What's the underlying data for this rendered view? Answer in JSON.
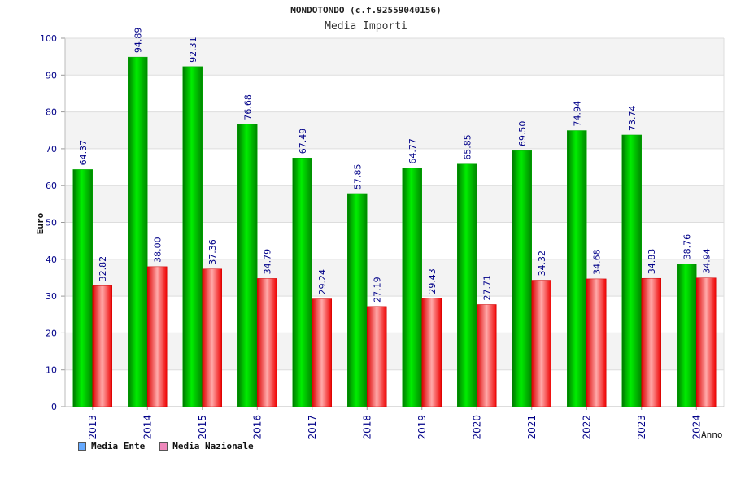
{
  "chart_data": {
    "type": "bar",
    "title": "MONDOTONDO (c.f.92559040156)",
    "subtitle": "Media Importi",
    "xlabel": "Anno",
    "ylabel": "Euro",
    "ylim": [
      0,
      100
    ],
    "yticks": [
      "0",
      "10",
      "20",
      "30",
      "40",
      "50",
      "60",
      "70",
      "80",
      "90",
      "100"
    ],
    "categories": [
      "2013",
      "2014",
      "2015",
      "2016",
      "2017",
      "2018",
      "2019",
      "2020",
      "2021",
      "2022",
      "2023",
      "2024"
    ],
    "grid": true,
    "legend_position": "bottom-left",
    "series": [
      {
        "name": "Media Ente",
        "values": [
          64.37,
          94.89,
          92.31,
          76.68,
          67.49,
          57.85,
          64.77,
          65.85,
          69.5,
          74.94,
          73.74,
          38.76
        ],
        "labels": [
          "64.37",
          "94.89",
          "92.31",
          "76.68",
          "67.49",
          "57.85",
          "64.77",
          "65.85",
          "69.50",
          "74.94",
          "73.74",
          "38.76"
        ],
        "color": "#00cc00",
        "legend_color": "#66aaff"
      },
      {
        "name": "Media Nazionale",
        "values": [
          32.82,
          38.0,
          37.36,
          34.79,
          29.24,
          27.19,
          29.43,
          27.71,
          34.32,
          34.68,
          34.83,
          34.94
        ],
        "labels": [
          "32.82",
          "38.00",
          "37.36",
          "34.79",
          "29.24",
          "27.19",
          "29.43",
          "27.71",
          "34.32",
          "34.68",
          "34.83",
          "34.94"
        ],
        "color": "#ee0000",
        "legend_color": "#ee88bb"
      }
    ]
  }
}
